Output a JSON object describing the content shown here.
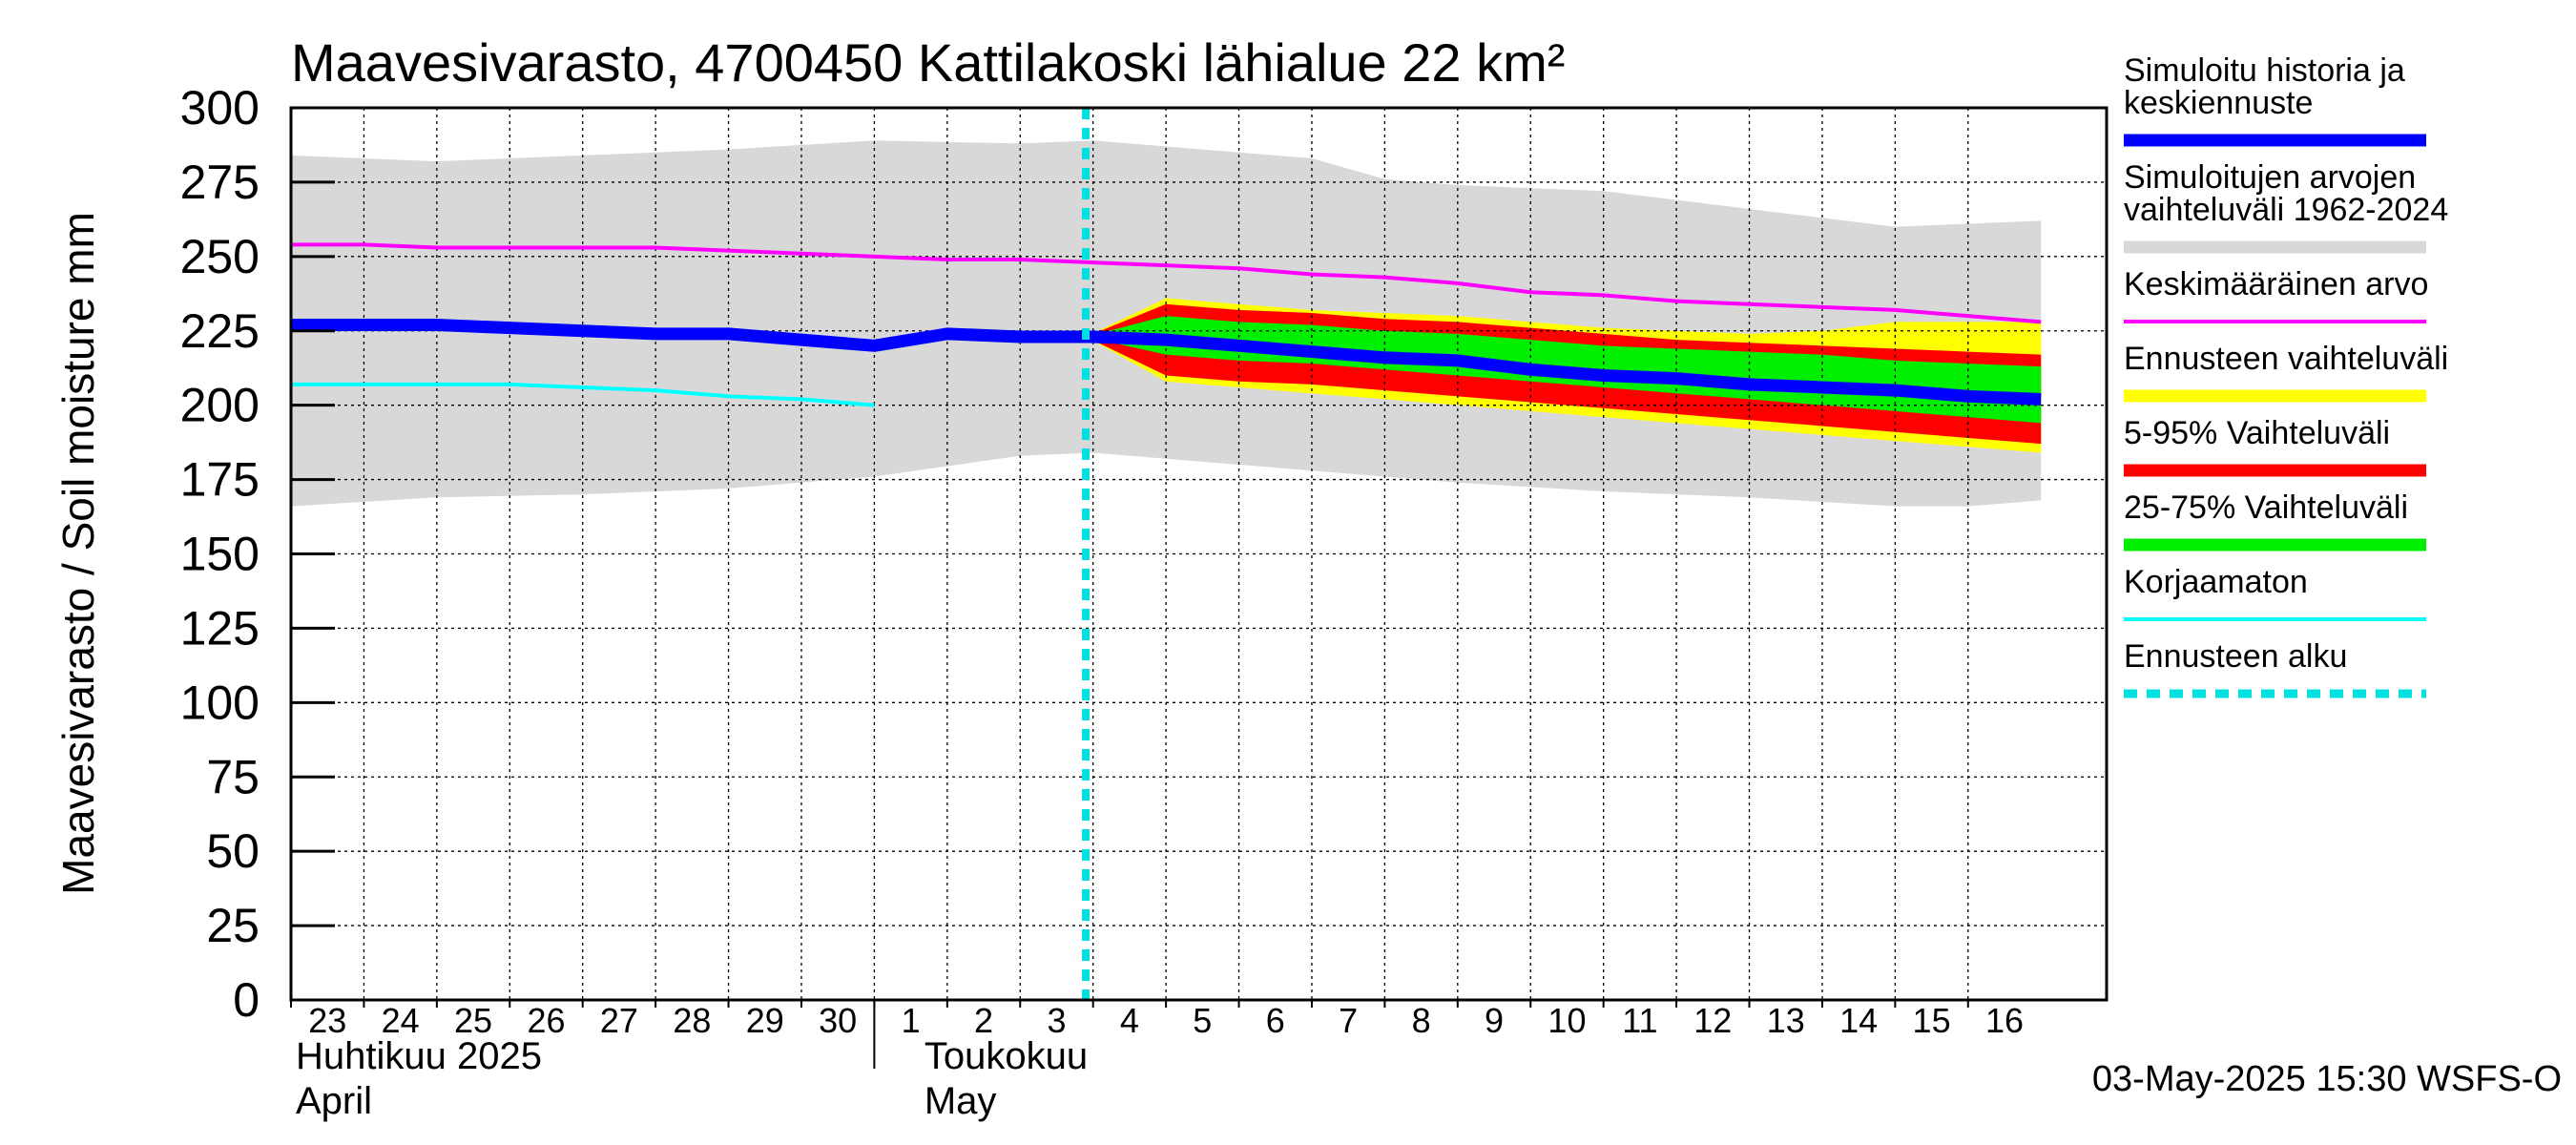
{
  "chart_data": {
    "type": "area",
    "title": "Maavesivarasto, 4700450 Kattilakoski lähialue 22 km²",
    "ylabel": "Maavesivarasto / Soil moisture   mm",
    "ylim": [
      0,
      300
    ],
    "yticks": [
      0,
      25,
      50,
      75,
      100,
      125,
      150,
      175,
      200,
      225,
      250,
      275,
      300
    ],
    "x_start_day": 23,
    "x_days": 24.9,
    "grid": true,
    "day_labels": [
      "23",
      "24",
      "25",
      "26",
      "27",
      "28",
      "29",
      "30",
      "1",
      "2",
      "3",
      "4",
      "5",
      "6",
      "7",
      "8",
      "9",
      "10",
      "11",
      "12",
      "13",
      "14",
      "15",
      "16"
    ],
    "month_labels": [
      {
        "line1": "Huhtikuu  2025",
        "line2": "April",
        "day": 23
      },
      {
        "line1": "Toukokuu",
        "line2": "May",
        "day": 32
      }
    ],
    "forecast_start_day": 33.9,
    "series": {
      "historical_range": {
        "name": "Simuloitujen arvojen vaihteluväli 1962-2024",
        "x": [
          23,
          25,
          27,
          29,
          31,
          33,
          34,
          37,
          38,
          39,
          41,
          43,
          45,
          46,
          47
        ],
        "upper": [
          284,
          282,
          284,
          286,
          289,
          288,
          289,
          283,
          276,
          274,
          272,
          266,
          260,
          261,
          262
        ],
        "lower": [
          166,
          169,
          170,
          172,
          176,
          183,
          184,
          178,
          176,
          174,
          171,
          169,
          166,
          166,
          168
        ]
      },
      "mean": {
        "name": "Keskimääräinen arvo",
        "x": [
          23,
          24,
          25,
          26,
          27,
          28,
          29,
          30,
          31,
          32,
          33,
          34,
          35,
          36,
          37,
          38,
          39,
          40,
          41,
          42,
          43,
          44,
          45,
          46,
          47
        ],
        "values": [
          254,
          254,
          253,
          253,
          253,
          253,
          252,
          251,
          250,
          249,
          249,
          248,
          247,
          246,
          244,
          243,
          241,
          238,
          237,
          235,
          234,
          233,
          232,
          230,
          228
        ]
      },
      "uncorrected": {
        "name": "Korjaamaton",
        "x": [
          23,
          24,
          25,
          26,
          27,
          28,
          29,
          30,
          31
        ],
        "values": [
          207,
          207,
          207,
          207,
          206,
          205,
          203,
          202,
          200
        ]
      },
      "simulated": {
        "name": "Simuloitu historia ja keskiennuste",
        "x": [
          23,
          24,
          25,
          26,
          27,
          28,
          29,
          30,
          31,
          32,
          33,
          34,
          35,
          36,
          37,
          38,
          39,
          40,
          41,
          42,
          43,
          44,
          45,
          46,
          47
        ],
        "values": [
          227,
          227,
          227,
          226,
          225,
          224,
          224,
          222,
          220,
          224,
          223,
          223,
          222,
          220,
          218,
          216,
          215,
          212,
          210,
          209,
          207,
          206,
          205,
          203,
          202
        ]
      },
      "forecast_x": [
        33.9,
        35,
        36,
        37,
        38,
        39,
        40,
        41,
        42,
        43,
        44,
        45,
        46,
        47
      ],
      "forecast_range": {
        "name": "Ennusteen vaihteluväli",
        "upper": [
          223,
          236,
          234,
          232,
          231,
          230,
          228,
          226,
          225,
          224,
          225,
          228,
          228,
          228
        ],
        "lower": [
          223,
          208,
          206,
          204,
          202,
          200,
          198,
          196,
          194,
          192,
          190,
          188,
          186,
          184
        ]
      },
      "p5_95": {
        "name": "5-95% Vaihteluväli",
        "upper": [
          223,
          234,
          232,
          231,
          229,
          228,
          226,
          224,
          222,
          221,
          220,
          219,
          218,
          217
        ],
        "lower": [
          223,
          210,
          208,
          207,
          205,
          203,
          201,
          199,
          197,
          195,
          193,
          191,
          189,
          187
        ]
      },
      "p25_75": {
        "name": "25-75% Vaihteluväli",
        "upper": [
          223,
          230,
          228,
          227,
          225,
          224,
          222,
          220,
          219,
          218,
          217,
          215,
          214,
          213
        ],
        "lower": [
          223,
          217,
          215,
          214,
          212,
          210,
          208,
          206,
          204,
          202,
          200,
          198,
          196,
          194
        ]
      }
    },
    "colors": {
      "simulated": "#0000ff",
      "historical_range": "#d8d8d8",
      "mean": "#ff00ff",
      "forecast_range": "#ffff00",
      "p5_95": "#ff0000",
      "p25_75": "#00ee00",
      "uncorrected": "#00ffff",
      "forecast_start": "#00e0e0"
    },
    "legend": [
      {
        "lines": [
          "Simuloitu historia ja",
          "keskiennuste"
        ],
        "key": "simulated",
        "style": "solid"
      },
      {
        "lines": [
          "Simuloitujen arvojen",
          "vaihteluväli 1962-2024"
        ],
        "key": "historical_range",
        "style": "solid"
      },
      {
        "lines": [
          "Keskimääräinen arvo"
        ],
        "key": "mean",
        "style": "thin"
      },
      {
        "lines": [
          "Ennusteen vaihteluväli"
        ],
        "key": "forecast_range",
        "style": "solid"
      },
      {
        "lines": [
          "5-95% Vaihteluväli"
        ],
        "key": "p5_95",
        "style": "solid"
      },
      {
        "lines": [
          "25-75% Vaihteluväli"
        ],
        "key": "p25_75",
        "style": "solid"
      },
      {
        "lines": [
          "Korjaamaton"
        ],
        "key": "uncorrected",
        "style": "thin"
      },
      {
        "lines": [
          "Ennusteen alku"
        ],
        "key": "forecast_start",
        "style": "dashed"
      }
    ],
    "footer": "03-May-2025 15:30 WSFS-O"
  }
}
